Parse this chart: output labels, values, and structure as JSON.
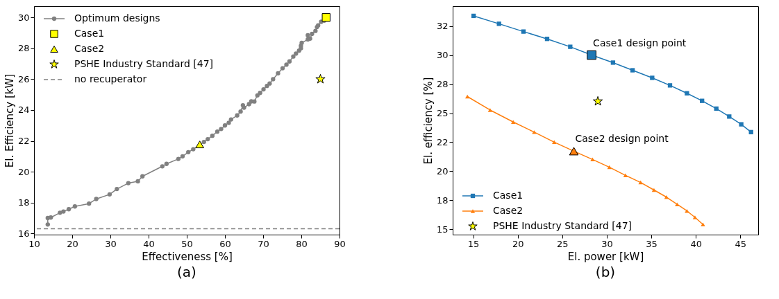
{
  "chart_data": [
    {
      "type": "line",
      "title": "(a)",
      "xlabel": "Effectiveness [%]",
      "ylabel": "El. Efficiency [kW]",
      "xlim": [
        10,
        90
      ],
      "ylim": [
        15.92,
        30.73
      ],
      "xticks": [
        10,
        20,
        30,
        40,
        50,
        60,
        70,
        80,
        90
      ],
      "yticks": [
        16,
        18,
        20,
        22,
        24,
        26,
        28,
        30
      ],
      "legend": "top left",
      "series": [
        {
          "name": "Optimum designs",
          "type": "line",
          "marker": "circle",
          "color": "#808080",
          "x": [
            13.6,
            13.6,
            14.4,
            16.8,
            17.7,
            19.1,
            20.7,
            24.4,
            26.3,
            29.8,
            31.7,
            34.7,
            37.2,
            38.4,
            43.6,
            44.7,
            47.8,
            48.9,
            50.4,
            51.7,
            54.5,
            55.5,
            56.7,
            58.0,
            59.0,
            60.0,
            61.0,
            61.6,
            63.2,
            64.1,
            64.7,
            65.0,
            66.3,
            66.9,
            67.7,
            68.5,
            69.2,
            70.1,
            71.0,
            71.7,
            72.6,
            73.9,
            75.1,
            76.1,
            76.9,
            77.9,
            78.6,
            79.4,
            79.9,
            79.9,
            80.1,
            81.7,
            81.7,
            82.3,
            82.8,
            83.7,
            84.1,
            84.4,
            85.2,
            86.0
          ],
          "values": [
            16.58,
            17.0,
            17.03,
            17.34,
            17.42,
            17.57,
            17.75,
            17.93,
            18.23,
            18.53,
            18.88,
            19.26,
            19.38,
            19.7,
            20.35,
            20.51,
            20.83,
            21.0,
            21.27,
            21.46,
            21.93,
            22.11,
            22.33,
            22.6,
            22.77,
            23.0,
            23.17,
            23.39,
            23.65,
            23.9,
            24.31,
            24.15,
            24.38,
            24.56,
            24.55,
            24.95,
            25.11,
            25.34,
            25.56,
            25.72,
            26.0,
            26.38,
            26.71,
            26.94,
            27.15,
            27.47,
            27.66,
            27.85,
            28.0,
            28.16,
            28.35,
            28.58,
            28.85,
            28.63,
            28.94,
            29.13,
            29.38,
            29.49,
            29.72,
            29.8
          ]
        },
        {
          "name": "Case1",
          "type": "scatter",
          "marker": "square",
          "color": "#ffff00",
          "x": [
            86.5
          ],
          "values": [
            30.0
          ]
        },
        {
          "name": "Case2",
          "type": "scatter",
          "marker": "triangle",
          "color": "#ffff00",
          "x": [
            53.4
          ],
          "values": [
            21.77
          ]
        },
        {
          "name": "PSHE Industry Standard [47]",
          "type": "scatter",
          "marker": "star",
          "color": "#ffff00",
          "x": [
            85.0
          ],
          "values": [
            26.0
          ]
        }
      ],
      "ref_lines": [
        {
          "axis": "y",
          "value": 16.3,
          "label": "no recuperator",
          "color": "#808080",
          "line_style": "dashed"
        }
      ]
    },
    {
      "type": "line",
      "title": "(b)",
      "xlabel": "El. power [kW]",
      "ylabel": "El. efficiency [%]",
      "xlim": [
        12.7,
        47.0
      ],
      "ylim": [
        14.55,
        34.2
      ],
      "xticks": [
        15,
        20,
        25,
        30,
        35,
        40,
        45
      ],
      "yticks": [
        15,
        {
          "value": 17.5,
          "label": "18"
        },
        20,
        {
          "value": 22.5,
          "label": "22"
        },
        25,
        {
          "value": 27.5,
          "label": "28"
        },
        30,
        {
          "value": 32.5,
          "label": "32"
        }
      ],
      "legend": "bottom left",
      "series": [
        {
          "name": "Case1",
          "type": "line",
          "marker": "square",
          "color": "#1f77b4",
          "x": [
            15.05,
            17.9,
            20.65,
            23.3,
            25.9,
            28.3,
            30.7,
            32.9,
            35.1,
            37.1,
            39.0,
            40.7,
            42.3,
            43.75,
            45.1,
            46.2
          ],
          "values": [
            33.37,
            32.69,
            32.02,
            31.39,
            30.71,
            30.0,
            29.35,
            28.69,
            28.04,
            27.39,
            26.71,
            26.06,
            25.39,
            24.71,
            24.04,
            23.37
          ]
        },
        {
          "name": "Case2",
          "type": "line",
          "marker": "triangle",
          "color": "#ff7f0e",
          "x": [
            14.35,
            16.9,
            19.5,
            21.85,
            24.1,
            26.3,
            28.4,
            30.3,
            32.1,
            33.8,
            35.3,
            36.7,
            37.9,
            39.0,
            39.9,
            40.8
          ],
          "values": [
            26.43,
            25.27,
            24.24,
            23.37,
            22.51,
            21.73,
            21.02,
            20.35,
            19.65,
            19.04,
            18.39,
            17.78,
            17.16,
            16.59,
            16.04,
            15.43
          ]
        },
        {
          "name": "PSHE Industry Standard [47]",
          "type": "scatter",
          "marker": "star",
          "color": "#ffff00",
          "x": [
            29.0
          ],
          "values": [
            26.02
          ]
        },
        {
          "type": "scatter",
          "marker": "square",
          "color": "#1f77b4",
          "x": [
            28.3
          ],
          "values": [
            30.0
          ]
        },
        {
          "type": "scatter",
          "marker": "triangle",
          "color": "#ff7f0e",
          "x": [
            26.3
          ],
          "values": [
            21.73
          ]
        }
      ],
      "annotations": [
        {
          "text": "Case1 design point",
          "x": 28.3,
          "y": 30.0
        },
        {
          "text": "Case2 design point",
          "x": 26.3,
          "y": 21.73
        }
      ]
    }
  ]
}
